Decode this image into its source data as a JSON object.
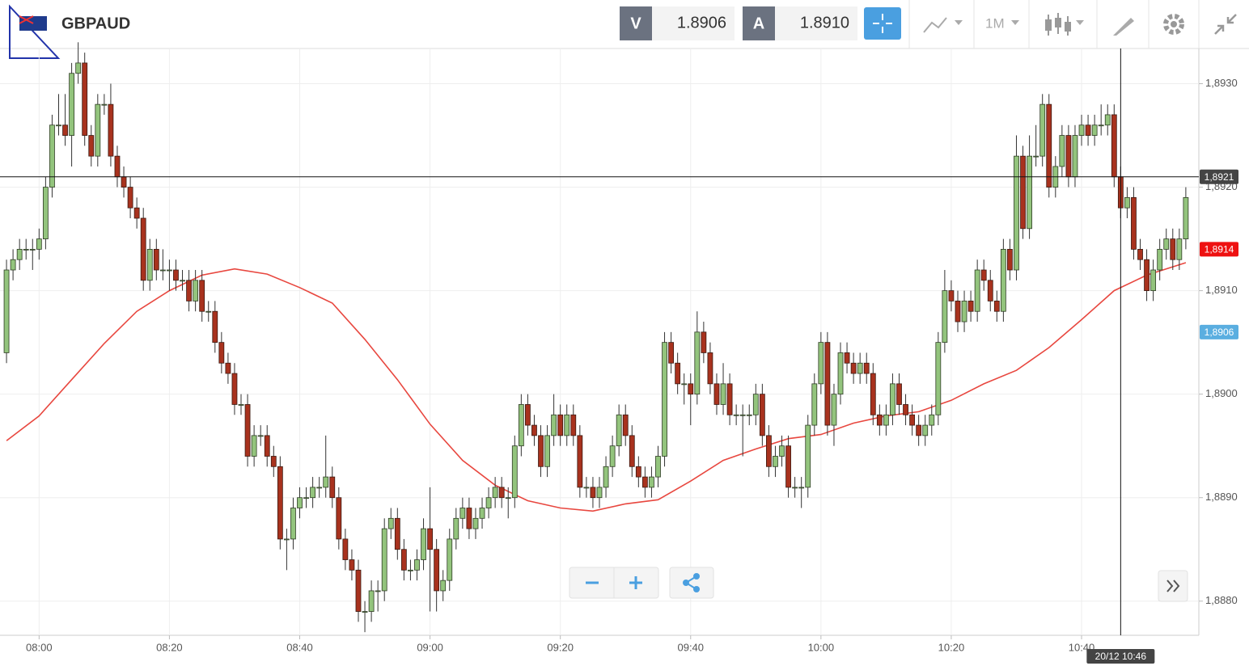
{
  "header": {
    "symbol": "GBPAUD",
    "bid_label": "V",
    "bid": "1.8906",
    "ask_label": "A",
    "ask": "1.8910",
    "timeframe": "1M"
  },
  "chart_data": {
    "type": "candlestick",
    "up_color": "#93c47d",
    "down_color": "#a8321e",
    "x": [
      "07:55",
      "07:56",
      "07:57",
      "07:58",
      "07:59",
      "08:00",
      "08:01",
      "08:02",
      "08:03",
      "08:04",
      "08:05",
      "08:06",
      "08:07",
      "08:08",
      "08:09",
      "08:10",
      "08:11",
      "08:12",
      "08:13",
      "08:14",
      "08:15",
      "08:16",
      "08:17",
      "08:18",
      "08:19",
      "08:20",
      "08:21",
      "08:22",
      "08:23",
      "08:24",
      "08:25",
      "08:26",
      "08:27",
      "08:28",
      "08:29",
      "08:30",
      "08:31",
      "08:32",
      "08:33",
      "08:34",
      "08:35",
      "08:36",
      "08:37",
      "08:38",
      "08:39",
      "08:40",
      "08:41",
      "08:42",
      "08:43",
      "08:44",
      "08:45",
      "08:46",
      "08:47",
      "08:48",
      "08:49",
      "08:50",
      "08:51",
      "08:52",
      "08:53",
      "08:54",
      "08:55",
      "08:56",
      "08:57",
      "08:58",
      "08:59",
      "09:00",
      "09:01",
      "09:02",
      "09:03",
      "09:04",
      "09:05",
      "09:06",
      "09:07",
      "09:08",
      "09:09",
      "09:10",
      "09:11",
      "09:12",
      "09:13",
      "09:14",
      "09:15",
      "09:16",
      "09:17",
      "09:18",
      "09:19",
      "09:20",
      "09:21",
      "09:22",
      "09:23",
      "09:24",
      "09:25",
      "09:26",
      "09:27",
      "09:28",
      "09:29",
      "09:30",
      "09:31",
      "09:32",
      "09:33",
      "09:34",
      "09:35",
      "09:36",
      "09:37",
      "09:38",
      "09:39",
      "09:40",
      "09:41",
      "09:42",
      "09:43",
      "09:44",
      "09:45",
      "09:46",
      "09:47",
      "09:48",
      "09:49",
      "09:50",
      "09:51",
      "09:52",
      "09:53",
      "09:54",
      "09:55",
      "09:56",
      "09:57",
      "09:58",
      "09:59",
      "10:00",
      "10:01",
      "10:02",
      "10:03",
      "10:04",
      "10:05",
      "10:06",
      "10:07",
      "10:08",
      "10:09",
      "10:10",
      "10:11",
      "10:12",
      "10:13",
      "10:14",
      "10:15",
      "10:16",
      "10:17",
      "10:18",
      "10:19",
      "10:20",
      "10:21",
      "10:22",
      "10:23",
      "10:24",
      "10:25",
      "10:26",
      "10:27",
      "10:28",
      "10:29",
      "10:30",
      "10:31",
      "10:32",
      "10:33",
      "10:34",
      "10:35",
      "10:36",
      "10:37",
      "10:38",
      "10:39",
      "10:40",
      "10:41",
      "10:42",
      "10:43",
      "10:44",
      "10:45",
      "10:46",
      "10:47",
      "10:48",
      "10:49",
      "10:50",
      "10:51",
      "10:52",
      "10:53",
      "10:54",
      "10:55",
      "10:56"
    ],
    "ohlc": [
      [
        1.8904,
        1.8913,
        1.8903,
        1.8912
      ],
      [
        1.8912,
        1.8914,
        1.8911,
        1.8913
      ],
      [
        1.8913,
        1.8915,
        1.8912,
        1.8914
      ],
      [
        1.8914,
        1.8915,
        1.8913,
        1.8914
      ],
      [
        1.8914,
        1.8915,
        1.8912,
        1.8914
      ],
      [
        1.8914,
        1.8916,
        1.8913,
        1.8915
      ],
      [
        1.8915,
        1.8921,
        1.8914,
        1.892
      ],
      [
        1.892,
        1.8927,
        1.8919,
        1.8926
      ],
      [
        1.8926,
        1.8929,
        1.8925,
        1.8926
      ],
      [
        1.8926,
        1.8929,
        1.8924,
        1.8925
      ],
      [
        1.8925,
        1.8932,
        1.8922,
        1.8931
      ],
      [
        1.8931,
        1.8934,
        1.893,
        1.8932
      ],
      [
        1.8932,
        1.8933,
        1.8924,
        1.8925
      ],
      [
        1.8925,
        1.8926,
        1.8922,
        1.8923
      ],
      [
        1.8923,
        1.8929,
        1.8922,
        1.8928
      ],
      [
        1.8928,
        1.8929,
        1.8927,
        1.8928
      ],
      [
        1.8928,
        1.893,
        1.8922,
        1.8923
      ],
      [
        1.8923,
        1.8924,
        1.892,
        1.8921
      ],
      [
        1.8921,
        1.8922,
        1.8919,
        1.892
      ],
      [
        1.892,
        1.8921,
        1.8917,
        1.8918
      ],
      [
        1.8918,
        1.8919,
        1.8916,
        1.8917
      ],
      [
        1.8917,
        1.8918,
        1.891,
        1.8911
      ],
      [
        1.8911,
        1.8915,
        1.891,
        1.8914
      ],
      [
        1.8914,
        1.8915,
        1.8911,
        1.8912
      ],
      [
        1.8912,
        1.8914,
        1.8911,
        1.8912
      ],
      [
        1.8912,
        1.8913,
        1.891,
        1.8912
      ],
      [
        1.8912,
        1.8913,
        1.891,
        1.8911
      ],
      [
        1.8911,
        1.8912,
        1.891,
        1.8911
      ],
      [
        1.8911,
        1.8912,
        1.8908,
        1.8909
      ],
      [
        1.8909,
        1.8912,
        1.8908,
        1.8911
      ],
      [
        1.8911,
        1.8912,
        1.8907,
        1.8908
      ],
      [
        1.8908,
        1.8909,
        1.8907,
        1.8908
      ],
      [
        1.8908,
        1.8909,
        1.8904,
        1.8905
      ],
      [
        1.8905,
        1.8906,
        1.8902,
        1.8903
      ],
      [
        1.8903,
        1.8904,
        1.8901,
        1.8902
      ],
      [
        1.8902,
        1.8903,
        1.8898,
        1.8899
      ],
      [
        1.8899,
        1.89,
        1.8898,
        1.8899
      ],
      [
        1.8899,
        1.89,
        1.8893,
        1.8894
      ],
      [
        1.8894,
        1.8897,
        1.8893,
        1.8896
      ],
      [
        1.8896,
        1.8897,
        1.8895,
        1.8896
      ],
      [
        1.8896,
        1.8897,
        1.8893,
        1.8894
      ],
      [
        1.8894,
        1.8895,
        1.8892,
        1.8893
      ],
      [
        1.8893,
        1.8894,
        1.8885,
        1.8886
      ],
      [
        1.8886,
        1.8887,
        1.8883,
        1.8886
      ],
      [
        1.8886,
        1.889,
        1.8885,
        1.8889
      ],
      [
        1.8889,
        1.8891,
        1.8888,
        1.889
      ],
      [
        1.889,
        1.8891,
        1.8889,
        1.889
      ],
      [
        1.889,
        1.8892,
        1.8889,
        1.8891
      ],
      [
        1.8891,
        1.8892,
        1.889,
        1.8891
      ],
      [
        1.8891,
        1.8896,
        1.889,
        1.8892
      ],
      [
        1.8892,
        1.8893,
        1.8889,
        1.889
      ],
      [
        1.889,
        1.8891,
        1.8885,
        1.8886
      ],
      [
        1.8886,
        1.8887,
        1.8883,
        1.8884
      ],
      [
        1.8884,
        1.8885,
        1.8882,
        1.8883
      ],
      [
        1.8883,
        1.8884,
        1.8878,
        1.8879
      ],
      [
        1.8879,
        1.888,
        1.8877,
        1.8879
      ],
      [
        1.8879,
        1.8882,
        1.8878,
        1.8881
      ],
      [
        1.8881,
        1.8882,
        1.8879,
        1.8881
      ],
      [
        1.8881,
        1.8888,
        1.888,
        1.8887
      ],
      [
        1.8887,
        1.8889,
        1.8886,
        1.8888
      ],
      [
        1.8888,
        1.8889,
        1.8884,
        1.8885
      ],
      [
        1.8885,
        1.8886,
        1.8882,
        1.8883
      ],
      [
        1.8883,
        1.8884,
        1.8882,
        1.8883
      ],
      [
        1.8883,
        1.8885,
        1.8882,
        1.8884
      ],
      [
        1.8884,
        1.8888,
        1.8883,
        1.8887
      ],
      [
        1.8887,
        1.8891,
        1.8879,
        1.8885
      ],
      [
        1.8885,
        1.8886,
        1.8879,
        1.8881
      ],
      [
        1.8881,
        1.8883,
        1.888,
        1.8882
      ],
      [
        1.8882,
        1.8887,
        1.8881,
        1.8886
      ],
      [
        1.8886,
        1.8889,
        1.8885,
        1.8888
      ],
      [
        1.8888,
        1.889,
        1.8887,
        1.8889
      ],
      [
        1.8889,
        1.889,
        1.8886,
        1.8887
      ],
      [
        1.8887,
        1.8889,
        1.8886,
        1.8888
      ],
      [
        1.8888,
        1.889,
        1.8887,
        1.8889
      ],
      [
        1.8889,
        1.8891,
        1.8888,
        1.889
      ],
      [
        1.889,
        1.8892,
        1.8889,
        1.8891
      ],
      [
        1.8891,
        1.8892,
        1.8889,
        1.889
      ],
      [
        1.889,
        1.8891,
        1.8888,
        1.889
      ],
      [
        1.889,
        1.8896,
        1.8889,
        1.8895
      ],
      [
        1.8895,
        1.89,
        1.8894,
        1.8899
      ],
      [
        1.8899,
        1.89,
        1.8896,
        1.8897
      ],
      [
        1.8897,
        1.8898,
        1.8895,
        1.8896
      ],
      [
        1.8896,
        1.8897,
        1.8892,
        1.8893
      ],
      [
        1.8893,
        1.8897,
        1.8892,
        1.8896
      ],
      [
        1.8896,
        1.89,
        1.8895,
        1.8898
      ],
      [
        1.8898,
        1.8899,
        1.8895,
        1.8896
      ],
      [
        1.8896,
        1.8899,
        1.8895,
        1.8898
      ],
      [
        1.8898,
        1.8899,
        1.8895,
        1.8896
      ],
      [
        1.8896,
        1.8897,
        1.889,
        1.8891
      ],
      [
        1.8891,
        1.8892,
        1.889,
        1.8891
      ],
      [
        1.8891,
        1.8892,
        1.8889,
        1.889
      ],
      [
        1.889,
        1.8892,
        1.8889,
        1.8891
      ],
      [
        1.8891,
        1.8894,
        1.889,
        1.8893
      ],
      [
        1.8893,
        1.8896,
        1.8892,
        1.8895
      ],
      [
        1.8895,
        1.8899,
        1.8894,
        1.8898
      ],
      [
        1.8898,
        1.8899,
        1.8895,
        1.8896
      ],
      [
        1.8896,
        1.8897,
        1.8892,
        1.8893
      ],
      [
        1.8893,
        1.8894,
        1.8891,
        1.8892
      ],
      [
        1.8892,
        1.8893,
        1.889,
        1.8891
      ],
      [
        1.8891,
        1.8893,
        1.889,
        1.8892
      ],
      [
        1.8892,
        1.8895,
        1.8891,
        1.8894
      ],
      [
        1.8894,
        1.8906,
        1.8893,
        1.8905
      ],
      [
        1.8905,
        1.8906,
        1.8902,
        1.8903
      ],
      [
        1.8903,
        1.8904,
        1.89,
        1.8901
      ],
      [
        1.8901,
        1.8902,
        1.8899,
        1.8901
      ],
      [
        1.8901,
        1.8902,
        1.8897,
        1.89
      ],
      [
        1.89,
        1.8908,
        1.8899,
        1.8906
      ],
      [
        1.8906,
        1.8907,
        1.8903,
        1.8904
      ],
      [
        1.8904,
        1.8905,
        1.89,
        1.8901
      ],
      [
        1.8901,
        1.8902,
        1.8898,
        1.8899
      ],
      [
        1.8899,
        1.8903,
        1.8898,
        1.8901
      ],
      [
        1.8901,
        1.8902,
        1.8897,
        1.8898
      ],
      [
        1.8898,
        1.8899,
        1.8897,
        1.8898
      ],
      [
        1.8898,
        1.8899,
        1.8894,
        1.8898
      ],
      [
        1.8898,
        1.8899,
        1.8897,
        1.8898
      ],
      [
        1.8898,
        1.8901,
        1.8897,
        1.89
      ],
      [
        1.89,
        1.8901,
        1.8895,
        1.8896
      ],
      [
        1.8896,
        1.8897,
        1.8892,
        1.8893
      ],
      [
        1.8893,
        1.8895,
        1.8892,
        1.8894
      ],
      [
        1.8894,
        1.8896,
        1.8893,
        1.8895
      ],
      [
        1.8895,
        1.8896,
        1.889,
        1.8891
      ],
      [
        1.8891,
        1.8892,
        1.889,
        1.8891
      ],
      [
        1.8891,
        1.8892,
        1.8889,
        1.8891
      ],
      [
        1.8891,
        1.8898,
        1.889,
        1.8897
      ],
      [
        1.8897,
        1.8902,
        1.8896,
        1.8901
      ],
      [
        1.8901,
        1.8906,
        1.89,
        1.8905
      ],
      [
        1.8905,
        1.8906,
        1.8896,
        1.8897
      ],
      [
        1.8897,
        1.8901,
        1.8895,
        1.89
      ],
      [
        1.89,
        1.8905,
        1.8899,
        1.8904
      ],
      [
        1.8904,
        1.8905,
        1.8902,
        1.8903
      ],
      [
        1.8903,
        1.8904,
        1.8901,
        1.8902
      ],
      [
        1.8902,
        1.8904,
        1.8901,
        1.8903
      ],
      [
        1.8903,
        1.8904,
        1.8901,
        1.8902
      ],
      [
        1.8902,
        1.8903,
        1.8897,
        1.8898
      ],
      [
        1.8898,
        1.8899,
        1.8896,
        1.8897
      ],
      [
        1.8897,
        1.8899,
        1.8896,
        1.8898
      ],
      [
        1.8898,
        1.8902,
        1.8897,
        1.8901
      ],
      [
        1.8901,
        1.8902,
        1.8898,
        1.8899
      ],
      [
        1.8899,
        1.89,
        1.8897,
        1.8898
      ],
      [
        1.8898,
        1.8899,
        1.8896,
        1.8897
      ],
      [
        1.8897,
        1.8898,
        1.8895,
        1.8896
      ],
      [
        1.8896,
        1.8898,
        1.8895,
        1.8897
      ],
      [
        1.8897,
        1.8899,
        1.8896,
        1.8898
      ],
      [
        1.8898,
        1.8906,
        1.8897,
        1.8905
      ],
      [
        1.8905,
        1.8912,
        1.8904,
        1.891
      ],
      [
        1.891,
        1.8911,
        1.8908,
        1.8909
      ],
      [
        1.8909,
        1.891,
        1.8906,
        1.8907
      ],
      [
        1.8907,
        1.891,
        1.8906,
        1.8909
      ],
      [
        1.8909,
        1.891,
        1.8907,
        1.8908
      ],
      [
        1.8908,
        1.8913,
        1.8907,
        1.8912
      ],
      [
        1.8912,
        1.8913,
        1.891,
        1.8911
      ],
      [
        1.8911,
        1.8912,
        1.8908,
        1.8909
      ],
      [
        1.8909,
        1.891,
        1.8907,
        1.8908
      ],
      [
        1.8908,
        1.8915,
        1.8907,
        1.8914
      ],
      [
        1.8914,
        1.8915,
        1.8911,
        1.8912
      ],
      [
        1.8912,
        1.8925,
        1.8911,
        1.8923
      ],
      [
        1.8923,
        1.8924,
        1.8915,
        1.8916
      ],
      [
        1.8916,
        1.8925,
        1.8915,
        1.8923
      ],
      [
        1.8923,
        1.8926,
        1.8922,
        1.8923
      ],
      [
        1.8923,
        1.8929,
        1.8922,
        1.8928
      ],
      [
        1.8928,
        1.8929,
        1.8919,
        1.892
      ],
      [
        1.892,
        1.8923,
        1.8919,
        1.8922
      ],
      [
        1.8922,
        1.8926,
        1.8921,
        1.8925
      ],
      [
        1.8925,
        1.8926,
        1.892,
        1.8921
      ],
      [
        1.8921,
        1.8926,
        1.892,
        1.8925
      ],
      [
        1.8925,
        1.8927,
        1.8924,
        1.8926
      ],
      [
        1.8926,
        1.8927,
        1.8924,
        1.8925
      ],
      [
        1.8925,
        1.8927,
        1.8924,
        1.8926
      ],
      [
        1.8926,
        1.8928,
        1.8925,
        1.8926
      ],
      [
        1.8926,
        1.8928,
        1.8925,
        1.8927
      ],
      [
        1.8927,
        1.8928,
        1.892,
        1.8921
      ],
      [
        1.8921,
        1.8922,
        1.8917,
        1.8918
      ],
      [
        1.8918,
        1.892,
        1.8917,
        1.8919
      ],
      [
        1.8919,
        1.892,
        1.8913,
        1.8914
      ],
      [
        1.8914,
        1.8915,
        1.8912,
        1.8913
      ],
      [
        1.8913,
        1.8914,
        1.8909,
        1.891
      ],
      [
        1.891,
        1.8913,
        1.8909,
        1.8912
      ],
      [
        1.8912,
        1.8915,
        1.8911,
        1.8914
      ],
      [
        1.8914,
        1.8916,
        1.8913,
        1.8915
      ],
      [
        1.8915,
        1.8916,
        1.8912,
        1.8913
      ],
      [
        1.8913,
        1.8916,
        1.8912,
        1.8915
      ],
      [
        1.8915,
        1.892,
        1.8914,
        1.8919
      ]
    ],
    "ma": {
      "color": "#e8473f",
      "x": [
        "07:55",
        "08:00",
        "08:05",
        "08:10",
        "08:15",
        "08:20",
        "08:25",
        "08:30",
        "08:35",
        "08:40",
        "08:45",
        "08:50",
        "08:55",
        "09:00",
        "09:05",
        "09:10",
        "09:15",
        "09:20",
        "09:25",
        "09:30",
        "09:35",
        "09:40",
        "09:45",
        "09:50",
        "09:55",
        "10:00",
        "10:05",
        "10:10",
        "10:15",
        "10:20",
        "10:25",
        "10:30",
        "10:35",
        "10:40",
        "10:45",
        "10:50",
        "10:56"
      ],
      "values": [
        1.88955,
        1.88979,
        1.89014,
        1.89049,
        1.8908,
        1.891,
        1.89115,
        1.89121,
        1.89116,
        1.89103,
        1.89088,
        1.89053,
        1.89014,
        1.88971,
        1.88936,
        1.88912,
        1.88897,
        1.8889,
        1.88887,
        1.88894,
        1.88898,
        1.88916,
        1.88936,
        1.88947,
        1.88957,
        1.88961,
        1.88972,
        1.88979,
        1.88983,
        1.88994,
        1.8901,
        1.89023,
        1.89045,
        1.89072,
        1.891,
        1.89115,
        1.89127
      ]
    },
    "xlim": [
      "07:54",
      "10:58"
    ],
    "xticks": [
      "08:00",
      "08:20",
      "08:40",
      "09:00",
      "09:20",
      "09:40",
      "10:00",
      "10:20",
      "10:40"
    ],
    "ylim": [
      1.88767,
      1.89334
    ],
    "yticks": [
      {
        "value": 1.888,
        "label": "1,8880"
      },
      {
        "value": 1.889,
        "label": "1,8890"
      },
      {
        "value": 1.89,
        "label": "1,8900"
      },
      {
        "value": 1.891,
        "label": "1,8910"
      },
      {
        "value": 1.892,
        "label": "1,8920"
      },
      {
        "value": 1.893,
        "label": "1,8930"
      }
    ],
    "grid": true,
    "crosshair": {
      "price": {
        "value": 1.8921,
        "label": "1,8921"
      },
      "time": "20/12 10:46",
      "color": "#111111"
    },
    "tags": [
      {
        "value": 1.8914,
        "label": "1,8914",
        "color": "#ee1111"
      },
      {
        "value": 1.8906,
        "label": "1,8906",
        "color": "#5aaee0"
      }
    ]
  }
}
